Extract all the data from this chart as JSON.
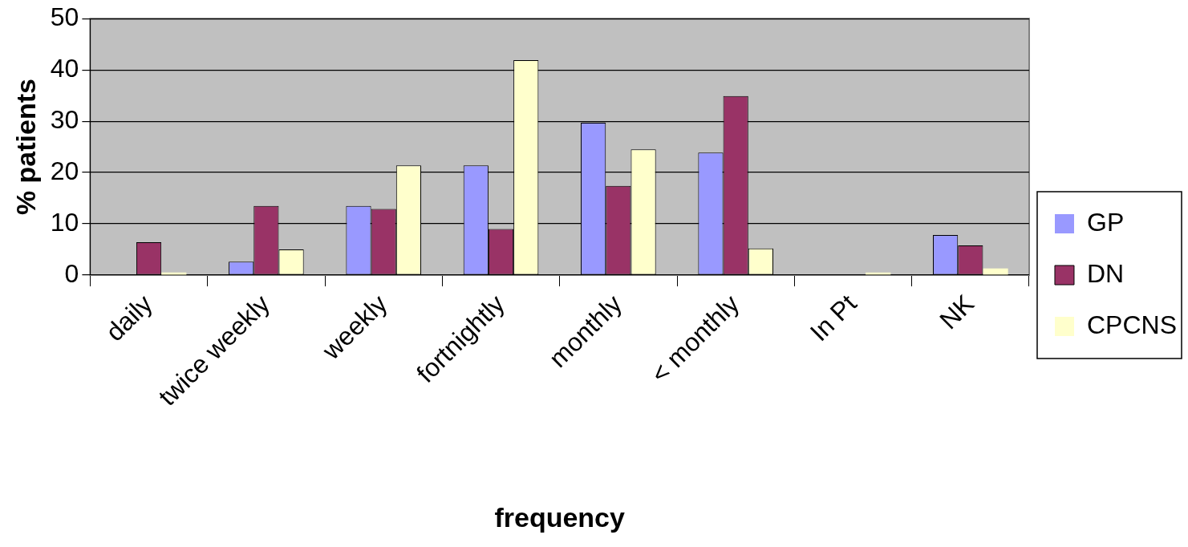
{
  "chart_data": {
    "type": "bar",
    "xlabel": "frequency",
    "ylabel": "% patients",
    "categories": [
      "daily",
      "twice weekly",
      "weekly",
      "fortnightly",
      "monthly",
      "< monthly",
      "In Pt",
      "NK"
    ],
    "series": [
      {
        "name": "GP",
        "color": "#9999ff",
        "values": [
          0,
          2.6,
          13.5,
          21.4,
          29.7,
          23.9,
          0,
          7.8
        ]
      },
      {
        "name": "DN",
        "color": "#993366",
        "values": [
          6.4,
          13.5,
          12.9,
          9.0,
          17.4,
          34.9,
          0,
          5.8
        ]
      },
      {
        "name": "CPCNS",
        "color": "#ffffcc",
        "values": [
          0.5,
          5.0,
          21.4,
          41.9,
          24.5,
          5.2,
          0.5,
          1.3
        ]
      }
    ],
    "ylim": [
      0,
      50
    ],
    "yticks": [
      0,
      10,
      20,
      30,
      40,
      50
    ],
    "grid": "y",
    "legend": "right"
  }
}
